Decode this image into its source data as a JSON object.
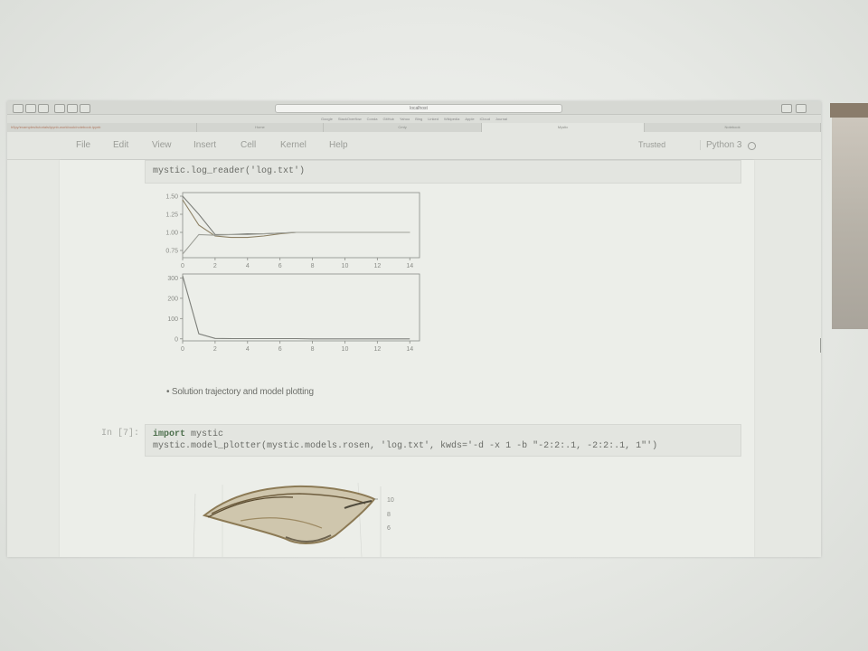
{
  "browser": {
    "address": "localhost",
    "bookmarks": [
      "Google",
      "StackOverflow",
      "Conda",
      "GitHub",
      "Yahoo",
      "Bing",
      "Linked",
      "Wikipedia",
      "Apple",
      "iCloud",
      "Journal"
    ],
    "tabs": [
      "h5py/examples/tutorials/ipynb-workbook/notebook.ipynb",
      "Home",
      "Cmty",
      "Mystic",
      "Notebook"
    ]
  },
  "menubar": {
    "items": [
      "File",
      "Edit",
      "View",
      "Insert",
      "Cell",
      "Kernel",
      "Help"
    ],
    "trusted": "Trusted",
    "kernel": "Python 3"
  },
  "cell1": {
    "code": "mystic.log_reader('log.txt')"
  },
  "plot1": {
    "y_ticks": [
      "1.50",
      "1.25",
      "1.00",
      "0.75"
    ],
    "x_ticks": [
      "0",
      "2",
      "4",
      "6",
      "8",
      "10",
      "12",
      "14"
    ]
  },
  "plot2": {
    "y_ticks": [
      "300",
      "200",
      "100",
      "0"
    ],
    "x_ticks": [
      "0",
      "2",
      "4",
      "6",
      "8",
      "10",
      "12",
      "14"
    ]
  },
  "markdown": {
    "bullet": "Solution trajectory and model plotting"
  },
  "cell2": {
    "prompt": "In [7]:",
    "line1_keyword": "import",
    "line1_rest": " mystic",
    "line2": "mystic.model_plotter(mystic.models.rosen, 'log.txt', kwds='-d -x 1 -b \"-2:2:.1, -2:2:.1, 1\"')"
  },
  "plot3": {
    "z_ticks": [
      "10",
      "8",
      "6"
    ]
  },
  "chart_data": [
    {
      "type": "line",
      "title": "",
      "x": [
        0,
        1,
        2,
        3,
        4,
        5,
        6,
        7,
        8,
        9,
        10,
        11,
        12,
        13,
        14
      ],
      "series": [
        {
          "values": [
            1.5,
            1.25,
            0.97,
            0.97,
            0.98,
            0.98,
            0.99,
            1.0,
            1.0,
            1.0,
            1.0,
            1.0,
            1.0,
            1.0,
            1.0
          ]
        },
        {
          "values": [
            1.45,
            1.1,
            0.95,
            0.93,
            0.93,
            0.95,
            0.98,
            1.0,
            1.0,
            1.0,
            1.0,
            1.0,
            1.0,
            1.0,
            1.0
          ]
        },
        {
          "values": [
            0.7,
            0.97,
            0.96,
            0.97,
            0.97,
            0.98,
            0.99,
            1.0,
            1.0,
            1.0,
            1.0,
            1.0,
            1.0,
            1.0,
            1.0
          ]
        }
      ],
      "xlim": [
        0,
        14.6
      ],
      "ylim": [
        0.65,
        1.55
      ],
      "grid": false
    },
    {
      "type": "line",
      "title": "",
      "x": [
        0,
        1,
        2,
        3,
        4,
        5,
        6,
        7,
        8,
        9,
        10,
        11,
        12,
        13,
        14
      ],
      "series": [
        {
          "values": [
            310,
            25,
            2,
            1,
            1,
            1,
            1,
            1,
            0,
            0,
            0,
            0,
            0,
            0,
            0
          ]
        }
      ],
      "xlim": [
        0,
        14.6
      ],
      "ylim": [
        -10,
        320
      ],
      "grid": false
    }
  ]
}
